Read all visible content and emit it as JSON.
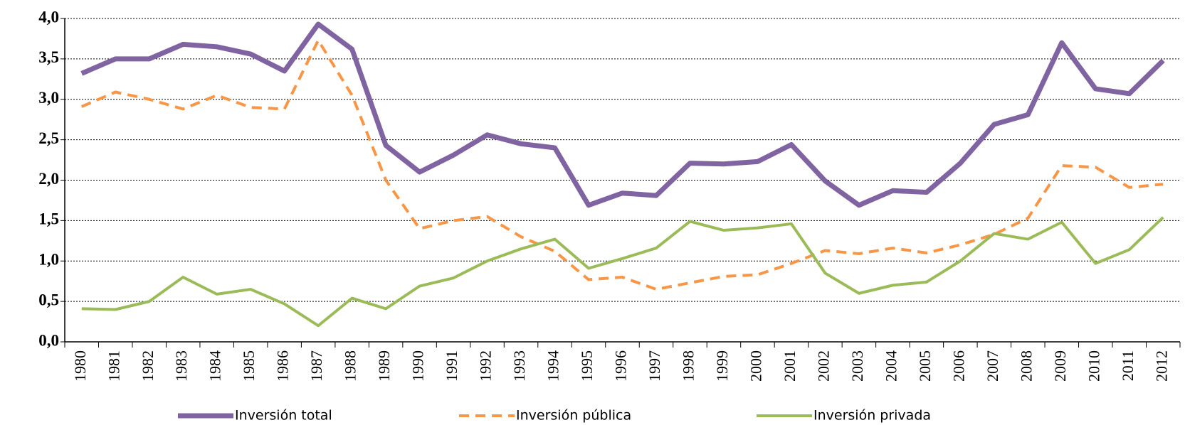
{
  "chart_data": {
    "type": "line",
    "categories": [
      "1980",
      "1981",
      "1982",
      "1983",
      "1984",
      "1985",
      "1986",
      "1987",
      "1988",
      "1989",
      "1990",
      "1991",
      "1992",
      "1993",
      "1994",
      "1995",
      "1996",
      "1997",
      "1998",
      "1999",
      "2000",
      "2001",
      "2002",
      "2003",
      "2004",
      "2005",
      "2006",
      "2007",
      "2008",
      "2009",
      "2010",
      "2011",
      "2012"
    ],
    "series": [
      {
        "name": "Inversión total",
        "color": "#8064a2",
        "dash": false,
        "width": 7,
        "values": [
          3.32,
          3.5,
          3.5,
          3.68,
          3.65,
          3.56,
          3.35,
          3.93,
          3.62,
          2.43,
          2.1,
          2.31,
          2.56,
          2.45,
          2.4,
          1.69,
          1.84,
          1.81,
          2.21,
          2.2,
          2.23,
          2.44,
          1.99,
          1.69,
          1.87,
          1.85,
          2.21,
          2.69,
          2.81,
          3.7,
          3.13,
          3.07,
          3.48
        ]
      },
      {
        "name": "Inversión pública",
        "color": "#f79646",
        "dash": true,
        "width": 4,
        "values": [
          2.91,
          3.09,
          3.0,
          2.88,
          3.05,
          2.9,
          2.88,
          3.73,
          3.05,
          2.0,
          1.4,
          1.5,
          1.55,
          1.3,
          1.12,
          0.77,
          0.8,
          0.65,
          0.73,
          0.81,
          0.83,
          0.97,
          1.13,
          1.09,
          1.16,
          1.1,
          1.2,
          1.33,
          1.53,
          2.18,
          2.16,
          1.91,
          1.95
        ]
      },
      {
        "name": "Inversión privada",
        "color": "#9bbb59",
        "dash": false,
        "width": 4,
        "values": [
          0.41,
          0.4,
          0.5,
          0.8,
          0.59,
          0.65,
          0.47,
          0.2,
          0.54,
          0.41,
          0.69,
          0.79,
          1.0,
          1.15,
          1.27,
          0.91,
          1.03,
          1.16,
          1.49,
          1.38,
          1.41,
          1.46,
          0.85,
          0.6,
          0.7,
          0.74,
          1.0,
          1.34,
          1.27,
          1.48,
          0.97,
          1.14,
          1.54
        ]
      }
    ],
    "ylim": [
      0,
      4
    ],
    "yticks": [
      {
        "value": 0,
        "label": "0,0"
      },
      {
        "value": 0.5,
        "label": "0,5"
      },
      {
        "value": 1,
        "label": "1,0"
      },
      {
        "value": 1.5,
        "label": "1,5"
      },
      {
        "value": 2,
        "label": "2,0"
      },
      {
        "value": 2.5,
        "label": "2,5"
      },
      {
        "value": 3,
        "label": "3,0"
      },
      {
        "value": 3.5,
        "label": "3,5"
      },
      {
        "value": 4,
        "label": "4,0"
      }
    ],
    "grid": true,
    "legend": "bottom"
  }
}
